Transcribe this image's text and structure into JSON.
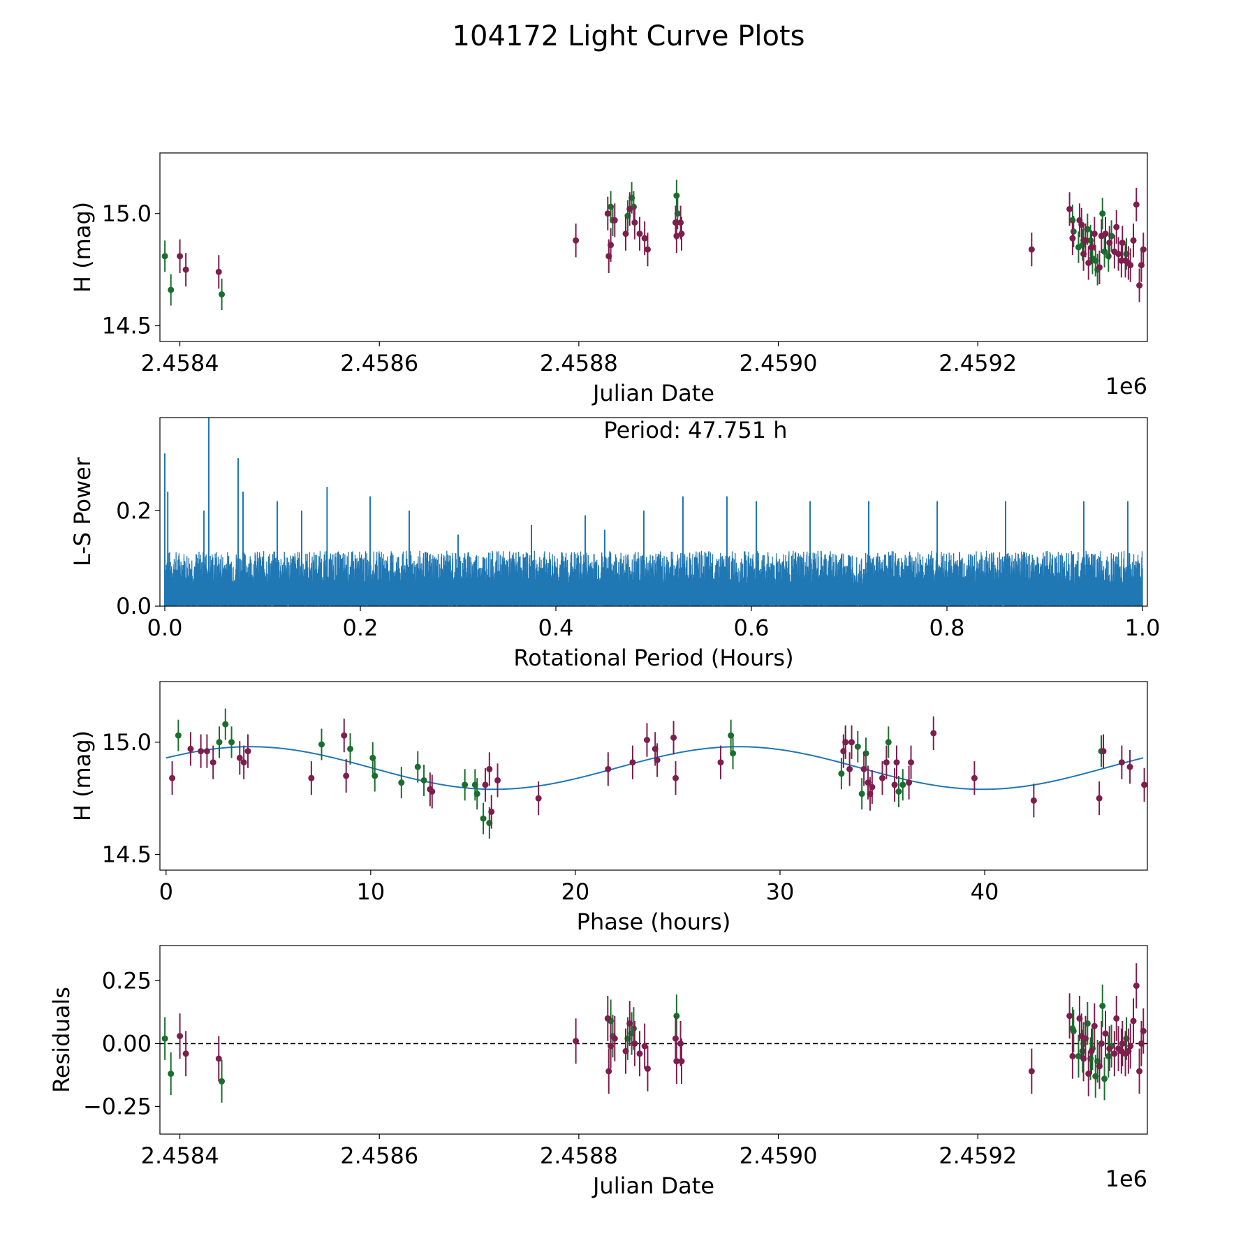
{
  "figure": {
    "title": "104172 Light Curve Plots"
  },
  "colors": {
    "green": "#1a6e2e",
    "purple": "#7d1e4e",
    "fit": "#1f77b4",
    "power": "#1f77b4"
  },
  "chart_data": [
    {
      "id": "lightcurve",
      "type": "scatter",
      "xlabel": "Julian Date",
      "ylabel": "H (mag)",
      "x_offset_label": "1e6",
      "xlim": [
        2.45838,
        2.45937
      ],
      "ylim": [
        14.43,
        15.27
      ],
      "xticks": [
        2.4584,
        2.4586,
        2.4588,
        2.459,
        2.4592
      ],
      "xtick_labels": [
        "2.4584",
        "2.4586",
        "2.4588",
        "2.4590",
        "2.4592"
      ],
      "yticks": [
        14.5,
        15.0
      ],
      "ytick_labels": [
        "14.5",
        "15.0"
      ],
      "series": [
        {
          "name": "green",
          "color_key": "green",
          "err": 0.1,
          "x": [
            2.458385,
            2.458391,
            2.458442,
            2.458832,
            2.458834,
            2.458849,
            2.458853,
            2.458855,
            2.458898,
            2.458899,
            2.459295,
            2.459296,
            2.459301,
            2.459305,
            2.459306,
            2.45931,
            2.459313,
            2.459315,
            2.459318,
            2.45932,
            2.459325,
            2.459327,
            2.459331,
            2.459334,
            2.459349
          ],
          "y": [
            14.81,
            14.66,
            14.64,
            15.03,
            14.97,
            14.99,
            15.07,
            15.03,
            15.08,
            15.0,
            14.97,
            14.92,
            14.85,
            14.86,
            14.88,
            14.93,
            14.88,
            14.8,
            14.79,
            14.75,
            15.0,
            14.83,
            14.81,
            14.9,
            14.82
          ]
        },
        {
          "name": "purple",
          "color_key": "purple",
          "err": 0.11,
          "x": [
            2.4584,
            2.458406,
            2.458439,
            2.458797,
            2.458829,
            2.45883,
            2.458832,
            2.458836,
            2.458847,
            2.458851,
            2.458856,
            2.458861,
            2.458866,
            2.458869,
            2.458897,
            2.458898,
            2.458902,
            2.458903,
            2.459254,
            2.459292,
            2.459295,
            2.459302,
            2.459304,
            2.459306,
            2.459308,
            2.459311,
            2.459314,
            2.459317,
            2.459322,
            2.459324,
            2.459328,
            2.459332,
            2.459337,
            2.459339,
            2.459341,
            2.459344,
            2.459345,
            2.459348,
            2.459351,
            2.459353,
            2.459356,
            2.459359,
            2.459362,
            2.459364,
            2.459366
          ],
          "y": [
            14.81,
            14.75,
            14.74,
            14.88,
            15.0,
            14.81,
            14.86,
            14.97,
            14.91,
            15.02,
            14.96,
            14.91,
            14.89,
            14.84,
            14.96,
            14.9,
            14.96,
            14.91,
            14.84,
            15.02,
            14.89,
            14.97,
            14.95,
            14.82,
            14.88,
            14.78,
            14.85,
            14.91,
            14.76,
            14.9,
            14.91,
            14.87,
            14.83,
            14.94,
            14.82,
            14.79,
            14.87,
            14.79,
            14.78,
            14.77,
            14.88,
            15.04,
            14.68,
            14.77,
            14.84
          ]
        }
      ]
    },
    {
      "id": "periodogram",
      "type": "line",
      "xlabel": "Rotational Period (Hours)",
      "ylabel": "L-S Power",
      "annotation": "Period: 47.751 h",
      "xlim": [
        -0.005,
        1.005
      ],
      "ylim": [
        0,
        0.395
      ],
      "xticks": [
        0.0,
        0.2,
        0.4,
        0.6,
        0.8,
        1.0
      ],
      "xtick_labels": [
        "0.0",
        "0.2",
        "0.4",
        "0.6",
        "0.8",
        "1.0"
      ],
      "yticks": [
        0.0,
        0.2
      ],
      "ytick_labels": [
        "0.0",
        "0.2"
      ],
      "series": [
        {
          "name": "L-S power",
          "color_key": "power",
          "x_start": 0.0,
          "x_end": 1.0,
          "baseline": 0.08,
          "peaks": [
            [
              0.0,
              0.32
            ],
            [
              0.003,
              0.24
            ],
            [
              0.045,
              0.4
            ],
            [
              0.075,
              0.31
            ],
            [
              0.04,
              0.2
            ],
            [
              0.08,
              0.24
            ],
            [
              0.115,
              0.22
            ],
            [
              0.14,
              0.2
            ],
            [
              0.166,
              0.25
            ],
            [
              0.21,
              0.23
            ],
            [
              0.25,
              0.2
            ],
            [
              0.3,
              0.15
            ],
            [
              0.375,
              0.17
            ],
            [
              0.43,
              0.19
            ],
            [
              0.45,
              0.16
            ],
            [
              0.49,
              0.2
            ],
            [
              0.53,
              0.23
            ],
            [
              0.575,
              0.23
            ],
            [
              0.605,
              0.22
            ],
            [
              0.66,
              0.22
            ],
            [
              0.72,
              0.22
            ],
            [
              0.79,
              0.22
            ],
            [
              0.86,
              0.22
            ],
            [
              0.94,
              0.22
            ],
            [
              0.985,
              0.22
            ]
          ]
        }
      ]
    },
    {
      "id": "phased",
      "type": "scatter",
      "xlabel": "Phase (hours)",
      "ylabel": "H (mag)",
      "xlim": [
        -0.3,
        47.95
      ],
      "ylim": [
        14.43,
        15.27
      ],
      "xticks": [
        0,
        10,
        20,
        30,
        40
      ],
      "xtick_labels": [
        "0",
        "10",
        "20",
        "30",
        "40"
      ],
      "yticks": [
        14.5,
        15.0
      ],
      "ytick_labels": [
        "14.5",
        "15.0"
      ],
      "fit": {
        "mean": 14.885,
        "amplitude": 0.095,
        "period": 23.876,
        "peak_at": 4.1,
        "color_key": "fit"
      },
      "series": [
        {
          "name": "green",
          "color_key": "green",
          "err": 0.1,
          "x": [
            0.6,
            2.6,
            2.9,
            3.2,
            7.6,
            9.0,
            10.1,
            10.2,
            11.5,
            12.3,
            12.6,
            14.6,
            15.1,
            15.2,
            15.5,
            15.8,
            27.6,
            27.7,
            33.0,
            33.2,
            33.8,
            34.0,
            34.2,
            35.3,
            35.8,
            36.0,
            45.7
          ],
          "y": [
            15.03,
            15.0,
            15.08,
            15.0,
            14.99,
            14.97,
            14.93,
            14.85,
            14.82,
            14.89,
            14.83,
            14.81,
            14.81,
            14.77,
            14.66,
            14.64,
            15.03,
            14.95,
            14.86,
            15.0,
            14.98,
            14.77,
            14.95,
            15.0,
            14.78,
            14.81,
            14.96
          ]
        },
        {
          "name": "purple",
          "color_key": "purple",
          "err": 0.11,
          "x": [
            0.3,
            1.2,
            1.7,
            2.0,
            2.3,
            3.6,
            3.8,
            4.0,
            7.1,
            8.7,
            8.8,
            12.9,
            13.0,
            15.6,
            15.8,
            15.9,
            16.2,
            18.2,
            21.6,
            22.8,
            23.5,
            23.9,
            24.0,
            24.8,
            24.9,
            27.1,
            33.1,
            33.2,
            33.4,
            33.5,
            34.1,
            34.3,
            34.4,
            34.5,
            35.0,
            35.2,
            35.6,
            35.7,
            36.3,
            36.4,
            37.5,
            39.5,
            42.4,
            45.6,
            45.8,
            46.7,
            47.1,
            47.8
          ],
          "y": [
            14.84,
            14.97,
            14.96,
            14.96,
            14.91,
            14.93,
            14.91,
            14.96,
            14.84,
            15.03,
            14.85,
            14.79,
            14.78,
            14.81,
            14.88,
            14.69,
            14.83,
            14.75,
            14.88,
            14.91,
            15.01,
            14.97,
            14.92,
            15.02,
            14.84,
            14.91,
            14.96,
            15.0,
            14.88,
            15.0,
            14.88,
            14.82,
            14.77,
            14.8,
            14.84,
            14.91,
            14.81,
            14.91,
            14.82,
            14.91,
            15.04,
            14.84,
            14.74,
            14.75,
            14.96,
            14.91,
            14.89,
            14.81
          ]
        }
      ]
    },
    {
      "id": "residuals",
      "type": "scatter",
      "xlabel": "Julian Date",
      "ylabel": "Residuals",
      "x_offset_label": "1e6",
      "xlim": [
        2.45838,
        2.45937
      ],
      "ylim": [
        -0.36,
        0.39
      ],
      "xticks": [
        2.4584,
        2.4586,
        2.4588,
        2.459,
        2.4592
      ],
      "xtick_labels": [
        "2.4584",
        "2.4586",
        "2.4588",
        "2.4590",
        "2.4592"
      ],
      "yticks": [
        -0.25,
        0.0,
        0.25
      ],
      "ytick_labels": [
        "−0.25",
        "0.00",
        "0.25"
      ],
      "zero_line": 0.0,
      "series": [
        {
          "name": "green",
          "color_key": "green",
          "err": 0.13,
          "x": [
            2.458385,
            2.458391,
            2.458442,
            2.458832,
            2.458834,
            2.458849,
            2.458853,
            2.458855,
            2.458898,
            2.459295,
            2.459296,
            2.459301,
            2.459305,
            2.459306,
            2.45931,
            2.459313,
            2.459315,
            2.459318,
            2.45932,
            2.459325,
            2.459327,
            2.459331,
            2.459334,
            2.459349
          ],
          "y": [
            0.02,
            -0.12,
            -0.15,
            0.09,
            0.03,
            0.02,
            0.04,
            0.06,
            0.11,
            0.06,
            0.05,
            -0.05,
            -0.03,
            0.0,
            0.08,
            -0.06,
            -0.02,
            -0.13,
            -0.07,
            0.15,
            -0.14,
            -0.05,
            -0.01,
            0.02
          ]
        },
        {
          "name": "purple",
          "color_key": "purple",
          "err": 0.14,
          "x": [
            2.4584,
            2.458406,
            2.458439,
            2.458797,
            2.458829,
            2.45883,
            2.458832,
            2.458836,
            2.458847,
            2.458851,
            2.458856,
            2.458861,
            2.458866,
            2.458869,
            2.458897,
            2.458898,
            2.458902,
            2.458903,
            2.459254,
            2.459292,
            2.459295,
            2.459302,
            2.459304,
            2.459306,
            2.459308,
            2.459311,
            2.459314,
            2.459317,
            2.459322,
            2.459324,
            2.459328,
            2.459332,
            2.459337,
            2.459339,
            2.459341,
            2.459344,
            2.459345,
            2.459348,
            2.459351,
            2.459353,
            2.459356,
            2.459359,
            2.459362,
            2.459364,
            2.459366
          ],
          "y": [
            0.03,
            -0.04,
            -0.06,
            0.01,
            0.1,
            -0.11,
            -0.01,
            0.02,
            -0.03,
            0.08,
            0.0,
            -0.04,
            -0.01,
            -0.1,
            0.02,
            -0.07,
            0.0,
            -0.07,
            -0.11,
            0.11,
            -0.05,
            0.1,
            0.03,
            -0.06,
            0.02,
            -0.12,
            -0.03,
            0.07,
            -0.09,
            0.0,
            0.04,
            -0.02,
            -0.04,
            0.1,
            -0.02,
            -0.03,
            0.0,
            -0.04,
            -0.03,
            -0.01,
            0.09,
            0.23,
            -0.11,
            0.0,
            0.05
          ]
        }
      ]
    }
  ]
}
